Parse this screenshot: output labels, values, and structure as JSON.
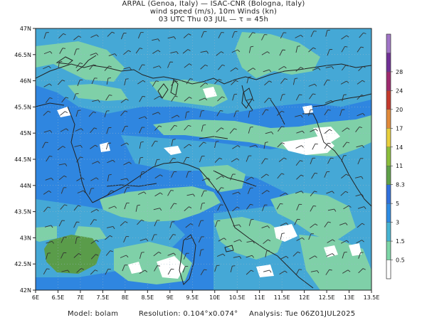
{
  "header": {
    "line1": "ARPAL (Genoa, Italy)  —  ISAC-CNR (Bologna, Italy)",
    "line2": "wind speed (m/s), 10m Winds (kn)",
    "line3": "03 UTC Thu 03 JUL  —  τ = 45h"
  },
  "axes": {
    "lon_ticks": [
      "6E",
      "6.5E",
      "7E",
      "7.5E",
      "8E",
      "8.5E",
      "9E",
      "9.5E",
      "10E",
      "10.5E",
      "11E",
      "11.5E",
      "12E",
      "12.5E",
      "13E",
      "13.5E"
    ],
    "lat_ticks": [
      "47N",
      "46.5N",
      "46N",
      "45.5N",
      "45N",
      "44.5N",
      "44N",
      "43.5N",
      "43N",
      "42.5N",
      "42N"
    ],
    "lon_range": [
      6,
      13.5
    ],
    "lat_range": [
      42,
      47
    ]
  },
  "colorbar": {
    "labels": [
      "0.5",
      "1.5",
      "3",
      "5",
      "8.3",
      "11",
      "14",
      "17",
      "20",
      "24",
      "28"
    ],
    "colors": [
      "#ffffff",
      "#7dd6a7",
      "#46b4d2",
      "#2d8be3",
      "#3070dc",
      "#5ea049",
      "#8bbe3b",
      "#e8cf3c",
      "#e18a3a",
      "#c43a2d",
      "#9e2a6e",
      "#6f2f96",
      "#a074c7"
    ]
  },
  "map_colors": {
    "sea_base": "#2f86e0",
    "low_wind": "#45a8d6",
    "teal": "#7fd0a8",
    "calm": "#ffffff",
    "green": "#5a9c4a",
    "border": "#222222"
  },
  "footer": {
    "model": "Model: bolam",
    "resolution": "Resolution: 0.104°x0.074°",
    "analysis": "Analysis: Tue 06Z01JUL2025"
  }
}
